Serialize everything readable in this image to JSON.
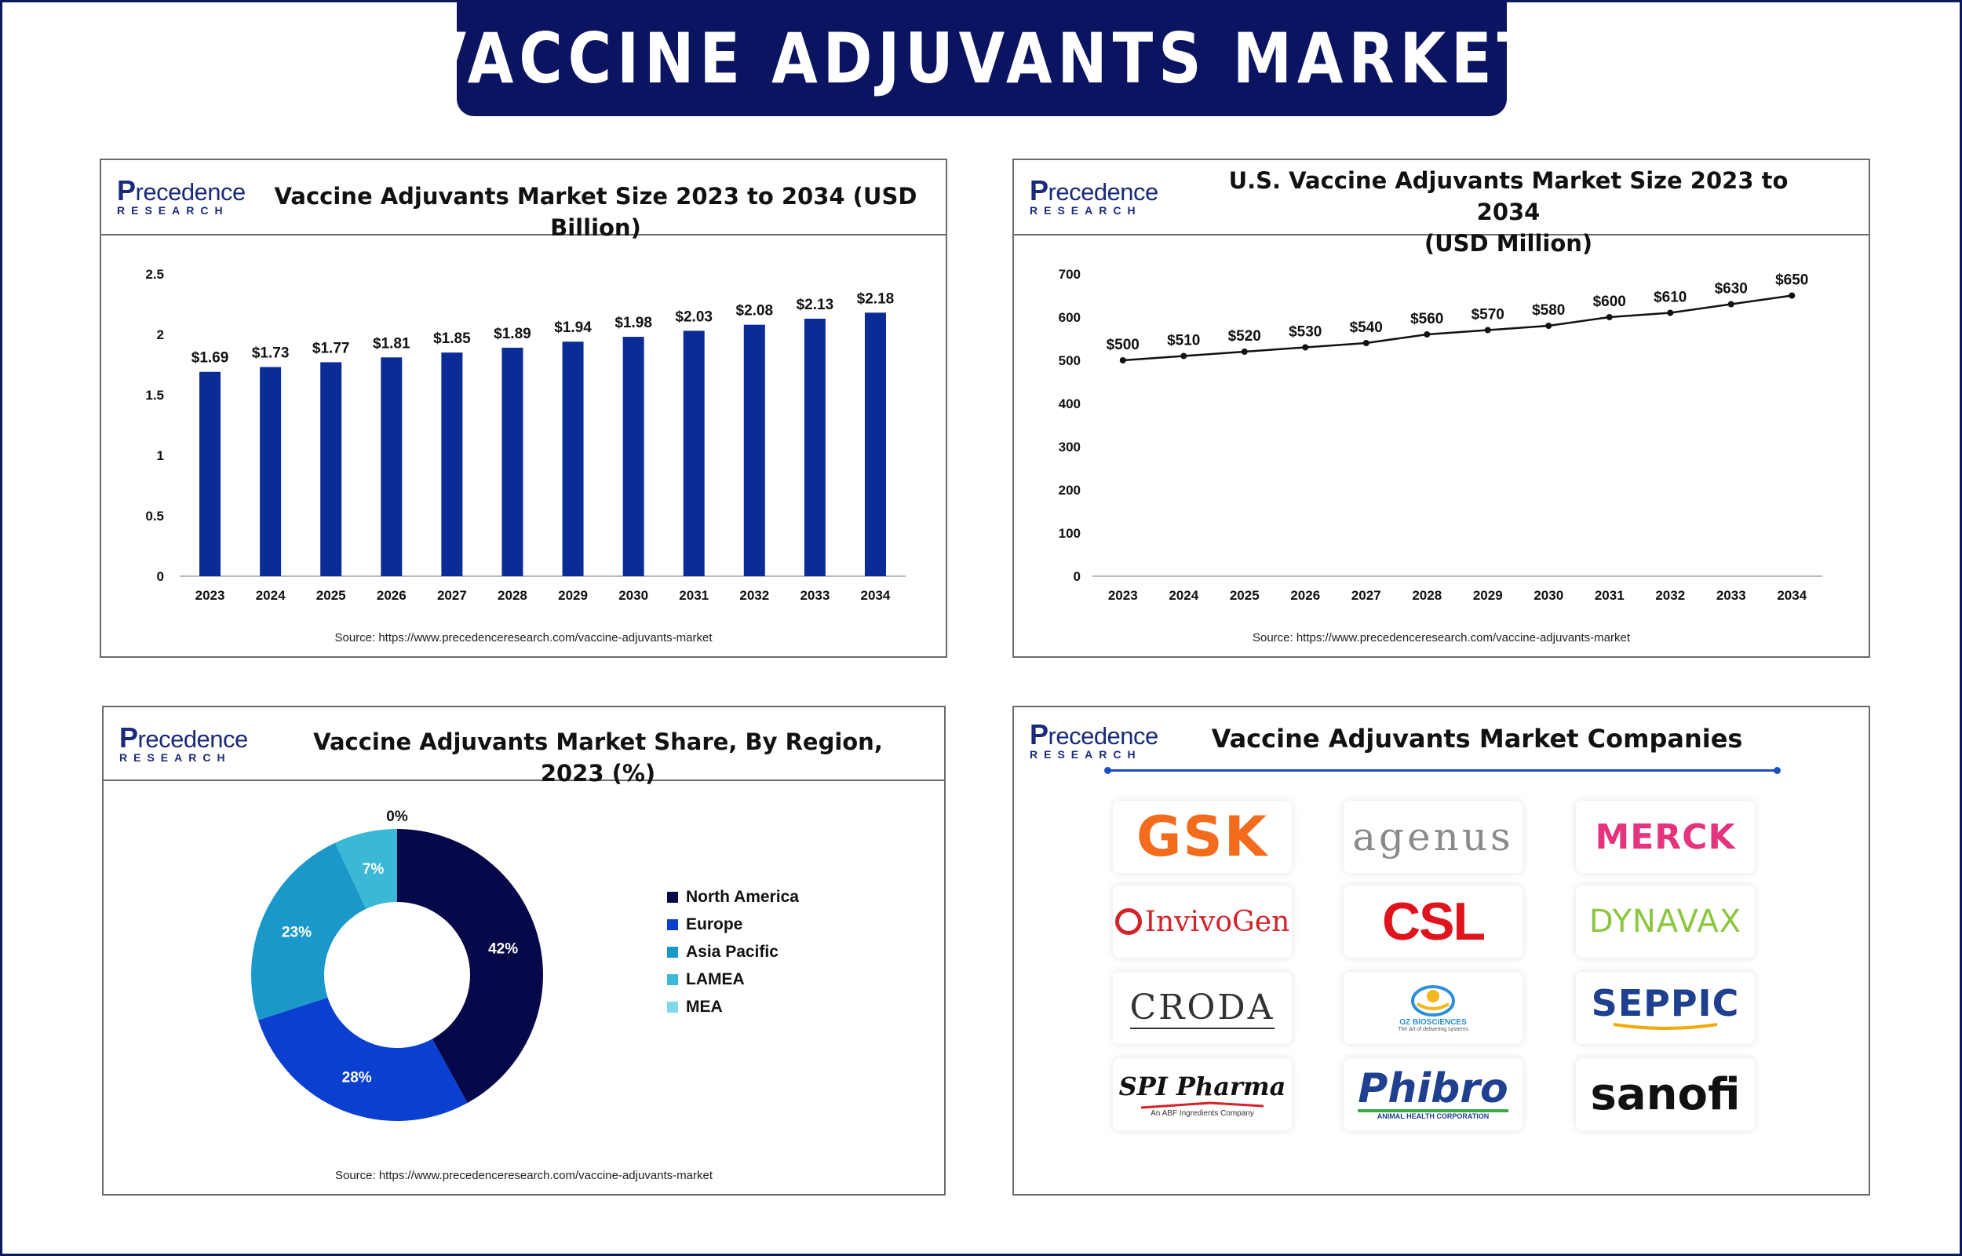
{
  "banner_title": "VACCINE ADJUVANTS MARKET",
  "logo": {
    "main": "recedence",
    "initial": "P",
    "sub": "RESEARCH"
  },
  "source_text": "Source: https://www.precedenceresearch.com/vaccine-adjuvants-market",
  "colors": {
    "navy": "#0b1460",
    "bar": "#0b2c96",
    "north_america": "#06084a",
    "europe": "#0a3fcf",
    "asia_pacific": "#1a98c9",
    "lamea": "#3ab8d6",
    "mea": "#7fd8ea"
  },
  "chart_data": [
    {
      "type": "bar",
      "title": "Vaccine Adjuvants Market Size 2023 to 2034 (USD Billion)",
      "categories": [
        "2023",
        "2024",
        "2025",
        "2026",
        "2027",
        "2028",
        "2029",
        "2030",
        "2031",
        "2032",
        "2033",
        "2034"
      ],
      "values": [
        1.69,
        1.73,
        1.77,
        1.81,
        1.85,
        1.89,
        1.94,
        1.98,
        2.03,
        2.08,
        2.13,
        2.18
      ],
      "labels": [
        "$1.69",
        "$1.73",
        "$1.77",
        "$1.81",
        "$1.85",
        "$1.89",
        "$1.94",
        "$1.98",
        "$2.03",
        "$2.08",
        "$2.13",
        "$2.18"
      ],
      "yticks": [
        "0",
        "0.5",
        "1",
        "1.5",
        "2",
        "2.5"
      ],
      "ylim": [
        0,
        2.5
      ],
      "grid": false
    },
    {
      "type": "line",
      "title_line1": "U.S. Vaccine Adjuvants Market Size 2023 to 2034",
      "title_line2": "(USD Million)",
      "categories": [
        "2023",
        "2024",
        "2025",
        "2026",
        "2027",
        "2028",
        "2029",
        "2030",
        "2031",
        "2032",
        "2033",
        "2034"
      ],
      "values": [
        500,
        510,
        520,
        530,
        540,
        560,
        570,
        580,
        600,
        610,
        630,
        650
      ],
      "labels": [
        "$500",
        "$510",
        "$520",
        "$530",
        "$540",
        "$560",
        "$570",
        "$580",
        "$600",
        "$610",
        "$630",
        "$650"
      ],
      "yticks": [
        "0",
        "100",
        "200",
        "300",
        "400",
        "500",
        "600",
        "700"
      ],
      "ylim": [
        0,
        700
      ],
      "grid": false
    },
    {
      "type": "pie",
      "subtype": "donut",
      "title": "Vaccine Adjuvants Market Share, By Region, 2023 (%)",
      "categories": [
        "North America",
        "Europe",
        "Asia Pacific",
        "LAMEA",
        "MEA"
      ],
      "values": [
        42,
        28,
        23,
        7,
        0
      ],
      "labels": [
        "42%",
        "28%",
        "23%",
        "7%",
        "0%"
      ],
      "legend_position": "right"
    }
  ],
  "companies": {
    "title": "Vaccine Adjuvants Market Companies",
    "items": [
      {
        "name": "GSK",
        "logo": "gsk-logo"
      },
      {
        "name": "agenus",
        "logo": "agenus-logo"
      },
      {
        "name": "MERCK",
        "logo": "merck-logo"
      },
      {
        "name": "InvivoGen",
        "logo": "invivogen-logo"
      },
      {
        "name": "CSL",
        "logo": "csl-logo"
      },
      {
        "name": "DYNAVAX",
        "logo": "dynavax-logo"
      },
      {
        "name": "CRODA",
        "logo": "croda-logo"
      },
      {
        "name": "OZ BIOSCIENCES",
        "tagline": "The art of delivering systems",
        "logo": "oz-biosciences-logo"
      },
      {
        "name": "SEPPIC",
        "logo": "seppic-logo"
      },
      {
        "name": "SPI Pharma",
        "tagline": "An ABF Ingredients Company",
        "logo": "spi-pharma-logo"
      },
      {
        "name": "Phibro",
        "tagline": "ANIMAL HEALTH CORPORATION",
        "logo": "phibro-logo"
      },
      {
        "name": "sanofi",
        "logo": "sanofi-logo"
      }
    ]
  }
}
